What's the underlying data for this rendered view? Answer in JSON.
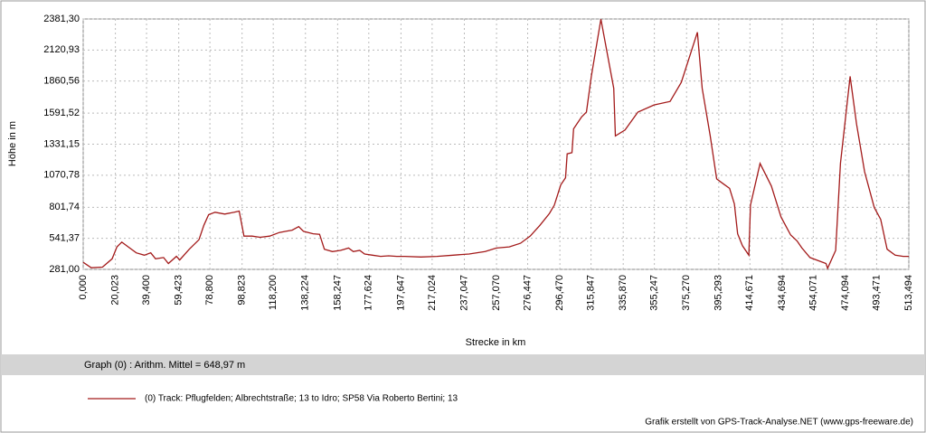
{
  "chart_data": {
    "type": "line",
    "ylabel": "Höhe  in  m",
    "xlabel": "Strecke  in  km",
    "summary": "Graph (0) :  Arithm. Mittel = 648,97 m",
    "credit": "Grafik erstellt von GPS-Track-Analyse.NET (www.gps-freeware.de)",
    "grid": true,
    "xlim": [
      0,
      513.494
    ],
    "ylim": [
      281.0,
      2381.3
    ],
    "yticks": [
      {
        "value": 281.0,
        "label": "281,00"
      },
      {
        "value": 541.37,
        "label": "541,37"
      },
      {
        "value": 801.74,
        "label": "801,74"
      },
      {
        "value": 1070.78,
        "label": "1070,78"
      },
      {
        "value": 1331.15,
        "label": "1331,15"
      },
      {
        "value": 1591.52,
        "label": "1591,52"
      },
      {
        "value": 1860.56,
        "label": "1860,56"
      },
      {
        "value": 2120.93,
        "label": "2120,93"
      },
      {
        "value": 2381.3,
        "label": "2381,30"
      }
    ],
    "xticks": [
      {
        "value": 0,
        "label": "0,000"
      },
      {
        "value": 20.023,
        "label": "20,023"
      },
      {
        "value": 39.4,
        "label": "39,400"
      },
      {
        "value": 59.423,
        "label": "59,423"
      },
      {
        "value": 78.8,
        "label": "78,800"
      },
      {
        "value": 98.823,
        "label": "98,823"
      },
      {
        "value": 118.2,
        "label": "118,200"
      },
      {
        "value": 138.224,
        "label": "138,224"
      },
      {
        "value": 158.247,
        "label": "158,247"
      },
      {
        "value": 177.624,
        "label": "177,624"
      },
      {
        "value": 197.647,
        "label": "197,647"
      },
      {
        "value": 217.024,
        "label": "217,024"
      },
      {
        "value": 237.047,
        "label": "237,047"
      },
      {
        "value": 257.07,
        "label": "257,070"
      },
      {
        "value": 276.447,
        "label": "276,447"
      },
      {
        "value": 296.47,
        "label": "296,470"
      },
      {
        "value": 315.847,
        "label": "315,847"
      },
      {
        "value": 335.87,
        "label": "335,870"
      },
      {
        "value": 355.247,
        "label": "355,247"
      },
      {
        "value": 375.27,
        "label": "375,270"
      },
      {
        "value": 395.293,
        "label": "395,293"
      },
      {
        "value": 414.671,
        "label": "414,671"
      },
      {
        "value": 434.694,
        "label": "434,694"
      },
      {
        "value": 454.071,
        "label": "454,071"
      },
      {
        "value": 474.094,
        "label": "474,094"
      },
      {
        "value": 493.471,
        "label": "493,471"
      },
      {
        "value": 513.494,
        "label": "513,494"
      }
    ],
    "x": [
      0,
      5,
      12,
      18,
      21,
      24,
      28,
      33,
      38,
      42,
      45,
      50,
      53,
      58,
      60,
      66,
      72,
      75,
      78,
      82,
      88,
      94,
      97,
      100,
      105,
      110,
      116,
      122,
      126,
      130,
      134,
      137,
      143,
      147,
      150,
      155,
      160,
      165,
      168,
      172,
      175,
      180,
      185,
      190,
      195,
      200,
      210,
      220,
      230,
      240,
      250,
      257,
      265,
      272,
      278,
      284,
      290,
      293,
      297,
      300,
      301,
      304,
      305,
      310,
      313,
      316,
      322,
      330,
      331,
      337,
      345,
      355,
      365,
      372,
      382,
      385,
      390,
      394,
      398,
      402,
      405,
      407,
      410,
      414,
      415,
      421,
      428,
      434,
      440,
      444,
      447,
      452,
      458,
      462,
      463,
      468,
      471,
      477,
      481,
      486,
      492,
      496,
      500,
      505,
      510,
      513.494
    ],
    "series": [
      {
        "name": "(0) Track: Pflugfelden; Albrechtstraße; 13 to Idro; SP58 Via Roberto Bertini; 13",
        "color": "#a31a1a",
        "values": [
          340,
          295,
          300,
          370,
          470,
          510,
          470,
          420,
          400,
          420,
          370,
          380,
          330,
          390,
          360,
          450,
          530,
          650,
          740,
          760,
          745,
          760,
          770,
          560,
          560,
          550,
          560,
          590,
          600,
          610,
          640,
          600,
          580,
          575,
          450,
          430,
          440,
          460,
          430,
          440,
          410,
          400,
          390,
          395,
          390,
          390,
          385,
          390,
          400,
          410,
          430,
          460,
          470,
          500,
          560,
          650,
          750,
          820,
          990,
          1050,
          1250,
          1260,
          1460,
          1560,
          1600,
          1900,
          2380,
          1800,
          1400,
          1450,
          1600,
          1660,
          1690,
          1850,
          2270,
          1800,
          1400,
          1040,
          1000,
          960,
          830,
          580,
          480,
          400,
          820,
          1170,
          980,
          720,
          570,
          520,
          460,
          380,
          350,
          330,
          290,
          440,
          1170,
          1900,
          1500,
          1100,
          800,
          700,
          450,
          400,
          390,
          390
        ]
      }
    ]
  }
}
